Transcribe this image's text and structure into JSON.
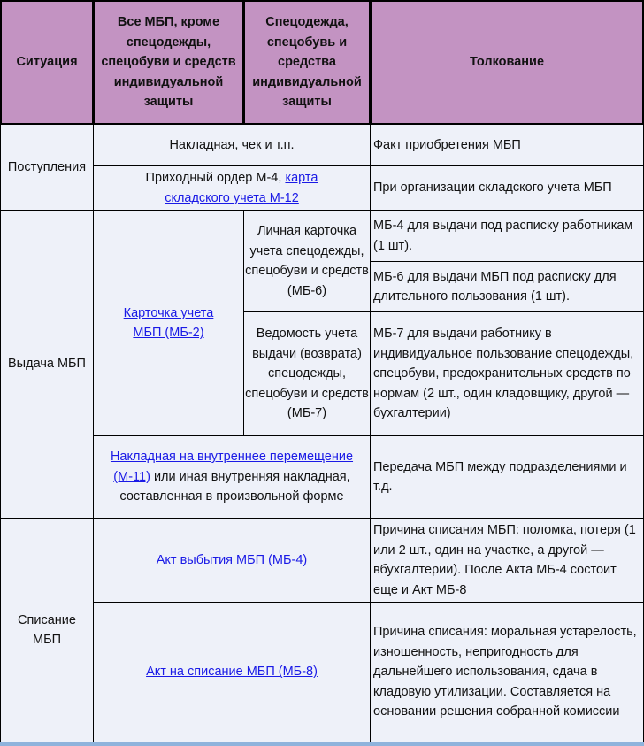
{
  "header": {
    "situation": "Ситуация",
    "all_mbp": "Все МБП, кроме спецодежды, спецобуви и средств индивидуальной защиты",
    "special": "Спецодежда, спецобувь и средства индивидуальной защиты",
    "interpretation": "Толкование"
  },
  "rows": {
    "receipt": {
      "label": "Поступления",
      "doc1": "Накладная, чек и т.п.",
      "int1": "Факт приобретения МБП",
      "doc2_text": "Приходный ордер М-4, ",
      "doc2_link": "карта складского учета М-12",
      "int2": "При организации складского учета МБП"
    },
    "issue": {
      "label": "Выдача МБП",
      "card_link": "Карточка учета МБП (МБ-2)",
      "personal_card": "Личная карточка учета спецодежды, спецобуви и средств (МБ-6)",
      "statement": "Ведомость учета выдачи (возврата) спецодежды, спецобуви и средств (МБ-7)",
      "int_mb4": "МБ-4 для выдачи под расписку работникам (1 шт).",
      "int_mb6": "МБ-6 для выдачи МБП под расписку для длительного пользования (1 шт).",
      "int_mb7": "МБ-7 для выдачи работнику в индивидуальное пользование спецодежды, спецобуви, предохранительных средств по нормам (2 шт., один кладовщику, другой — бухгалтерии)",
      "transfer_link": "Накладная на внутреннее перемещение (М-11)",
      "transfer_text": " или иная внутренняя накладная, составленная в произвольной форме",
      "int_transfer": "Передача МБП между подразделениями и т.д."
    },
    "writeoff": {
      "label": "Списание МБП",
      "act1_link": "Акт выбытия МБП (МБ-4)",
      "int1": "Причина списания МБП: поломка, потеря (1 или 2 шт., один на участке, а другой — вбухгалтерии). После Акта МБ-4 состоит еще и Акт МБ-8",
      "act2_link": "Акт на списание МБП (МБ-8)",
      "int2": "Причина списания: моральная устарелость, изношенность, непригодность для дальнейшего использования, сдача в кладовую утилизации. Составляется на основании решения собранной комиссии"
    }
  }
}
